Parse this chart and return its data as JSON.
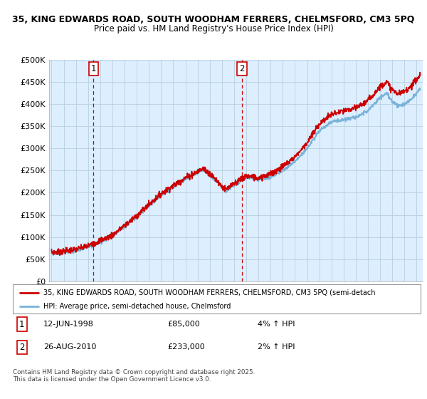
{
  "title_line1": "35, KING EDWARDS ROAD, SOUTH WOODHAM FERRERS, CHELMSFORD, CM3 5PQ",
  "title_line2": "Price paid vs. HM Land Registry's House Price Index (HPI)",
  "ylabel_ticks": [
    "£0",
    "£50K",
    "£100K",
    "£150K",
    "£200K",
    "£250K",
    "£300K",
    "£350K",
    "£400K",
    "£450K",
    "£500K"
  ],
  "ytick_values": [
    0,
    50000,
    100000,
    150000,
    200000,
    250000,
    300000,
    350000,
    400000,
    450000,
    500000
  ],
  "ylim": [
    0,
    500000
  ],
  "xlim_start": 1994.8,
  "xlim_end": 2025.5,
  "purchase1_x": 1998.45,
  "purchase1_y": 85000,
  "purchase2_x": 2010.65,
  "purchase2_y": 233000,
  "legend_line1": "35, KING EDWARDS ROAD, SOUTH WOODHAM FERRERS, CHELMSFORD, CM3 5PQ (semi-detach",
  "legend_line2": "HPI: Average price, semi-detached house, Chelmsford",
  "table_row1": [
    "1",
    "12-JUN-1998",
    "£85,000",
    "4% ↑ HPI"
  ],
  "table_row2": [
    "2",
    "26-AUG-2010",
    "£233,000",
    "2% ↑ HPI"
  ],
  "footer": "Contains HM Land Registry data © Crown copyright and database right 2025.\nThis data is licensed under the Open Government Licence v3.0.",
  "hpi_color": "#7ab3d9",
  "price_color": "#cc0000",
  "dashed_line_color": "#cc0000",
  "bg_color": "#ddeeff",
  "grid_color": "#b8cfe0"
}
